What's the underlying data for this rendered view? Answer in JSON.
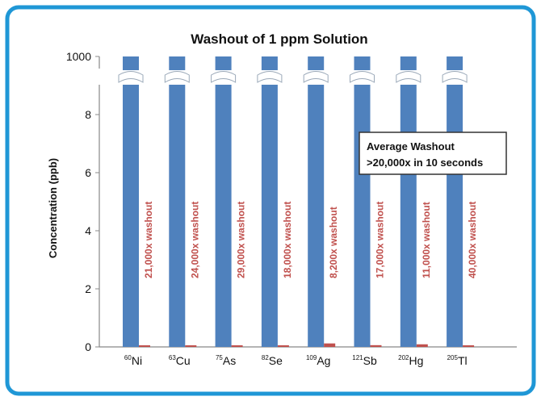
{
  "chart_data": {
    "type": "bar",
    "title": "Washout of 1 ppm Solution",
    "xlabel": "",
    "ylabel": "Concentration (ppb)",
    "y_ticks": [
      "0",
      "2",
      "4",
      "6",
      "8",
      "1000"
    ],
    "ylim": [
      0,
      9
    ],
    "axis_break": {
      "lower_max": 9,
      "upper_value": 1000
    },
    "categories": [
      {
        "mass": "60",
        "symbol": "Ni"
      },
      {
        "mass": "63",
        "symbol": "Cu"
      },
      {
        "mass": "75",
        "symbol": "As"
      },
      {
        "mass": "82",
        "symbol": "Se"
      },
      {
        "mass": "109",
        "symbol": "Ag"
      },
      {
        "mass": "121",
        "symbol": "Sb"
      },
      {
        "mass": "202",
        "symbol": "Hg"
      },
      {
        "mass": "205",
        "symbol": "Tl"
      }
    ],
    "series": [
      {
        "values": [
          1000,
          1000,
          1000,
          1000,
          1000,
          1000,
          1000,
          1000
        ],
        "color": "#4f81bd"
      },
      {
        "values": [
          0.05,
          0.04,
          0.03,
          0.05,
          0.12,
          0.06,
          0.09,
          0.02
        ],
        "color": "#c0504d"
      }
    ],
    "bar_labels": [
      "21,000x washout",
      "24,000x washout",
      "29,000x washout",
      "18,000x washout",
      "8,200x washout",
      "17,000x washout",
      "11,000x washout",
      "40,000x washout"
    ],
    "annotation": {
      "line1": "Average Washout",
      "line2": ">20,000x in 10 seconds"
    },
    "grid": false,
    "legend": "none",
    "colors": {
      "frame": "#1f97d6",
      "label_text": "#c0504d",
      "axis": "#888888"
    }
  }
}
